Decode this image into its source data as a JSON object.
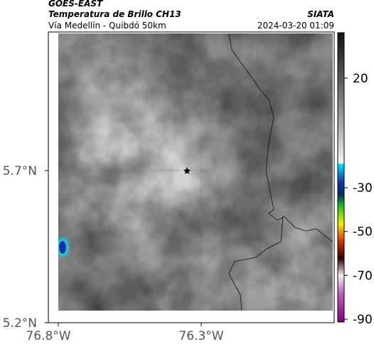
{
  "header": {
    "title": "GOES-EAST",
    "subtitle": "Temperatura de Brillo CH13",
    "location": "Vía Medellín - Quibdó 50km",
    "source": "SIATA",
    "datetime": "2024-03-20 01:09"
  },
  "map": {
    "lon_ticks": [
      "76.8°W",
      "76.3°W"
    ],
    "lat_ticks": [
      "5.7°N",
      "5.2°N"
    ]
  },
  "colorbar": {
    "ticks": [
      20,
      -30,
      -50,
      -70,
      -90
    ]
  }
}
